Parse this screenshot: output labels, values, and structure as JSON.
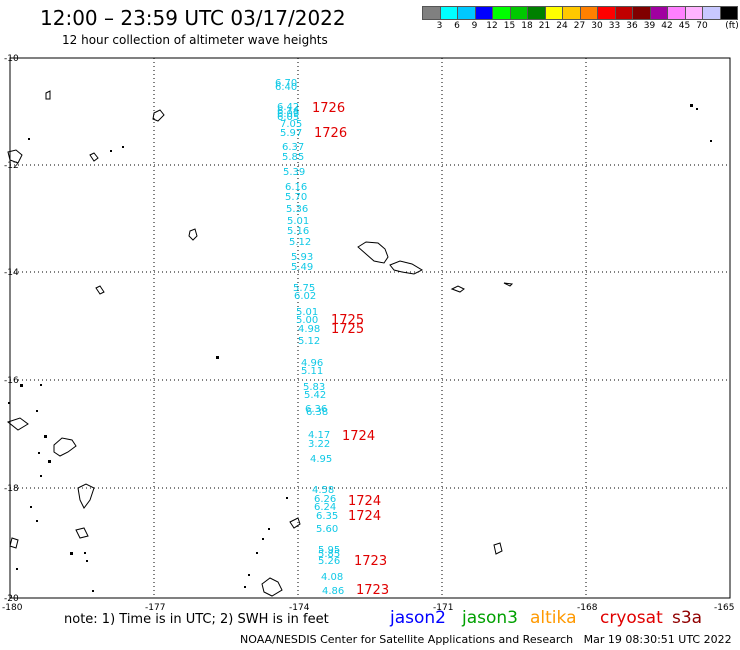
{
  "title": "12:00 – 23:59 UTC 03/17/2022",
  "subtitle": "12 hour collection of altimeter wave heights",
  "scale": {
    "unit": "(ft)",
    "colors": [
      "#808080",
      "#00ffff",
      "#00c8ff",
      "#0000ff",
      "#00ff00",
      "#00c800",
      "#008000",
      "#ffff00",
      "#ffc800",
      "#ff8000",
      "#ff0000",
      "#c00000",
      "#800000",
      "#a000a0",
      "#ff80ff",
      "#ffb4ff",
      "#c8c8ff",
      "#000000"
    ],
    "labels": [
      "3",
      "6",
      "9",
      "12",
      "15",
      "18",
      "21",
      "24",
      "27",
      "30",
      "33",
      "36",
      "39",
      "42",
      "45",
      "70"
    ]
  },
  "axes": {
    "lat_labels": [
      "-10",
      "-12",
      "-14",
      "-16",
      "-18",
      "-20"
    ],
    "lon_labels": [
      "-180",
      "-177",
      "-174",
      "-171",
      "-168",
      "-165"
    ]
  },
  "track": {
    "heights": [
      "6.70",
      "6.40",
      "6.42",
      "6.14",
      "6.09",
      "6.05",
      "7.05",
      "5.97",
      "6.37",
      "5.85",
      "5.39",
      "6.16",
      "5.70",
      "5.36",
      "5.01",
      "5.16",
      "5.12",
      "5.93",
      "5.49",
      "5.75",
      "6.02",
      "5.01",
      "5.00",
      "4.98",
      "5.12",
      "4.96",
      "5.11",
      "5.83",
      "5.42",
      "6.36",
      "6.38",
      "4.17",
      "3.22",
      "4.95",
      "4.58",
      "6.26",
      "6.24",
      "6.35",
      "5.60",
      "5.95",
      "5.85",
      "5.26",
      "4.08",
      "4.86"
    ],
    "times": [
      "1726",
      "1726",
      "1725",
      "1725",
      "1724",
      "1724",
      "1724",
      "1723",
      "1723"
    ]
  },
  "note": "note: 1) Time is in UTC; 2) SWH is in feet",
  "satellites": [
    {
      "name": "jason2",
      "color": "#0000ff"
    },
    {
      "name": "jason3",
      "color": "#00a000"
    },
    {
      "name": "altika",
      "color": "#ff9900"
    },
    {
      "name": "cryosat",
      "color": "#e00000"
    },
    {
      "name": "s3a",
      "color": "#900000"
    }
  ],
  "footer": "NOAA/NESDIS Center for Satellite Applications and Research   Mar 19 08:30:51 UTC 2022"
}
